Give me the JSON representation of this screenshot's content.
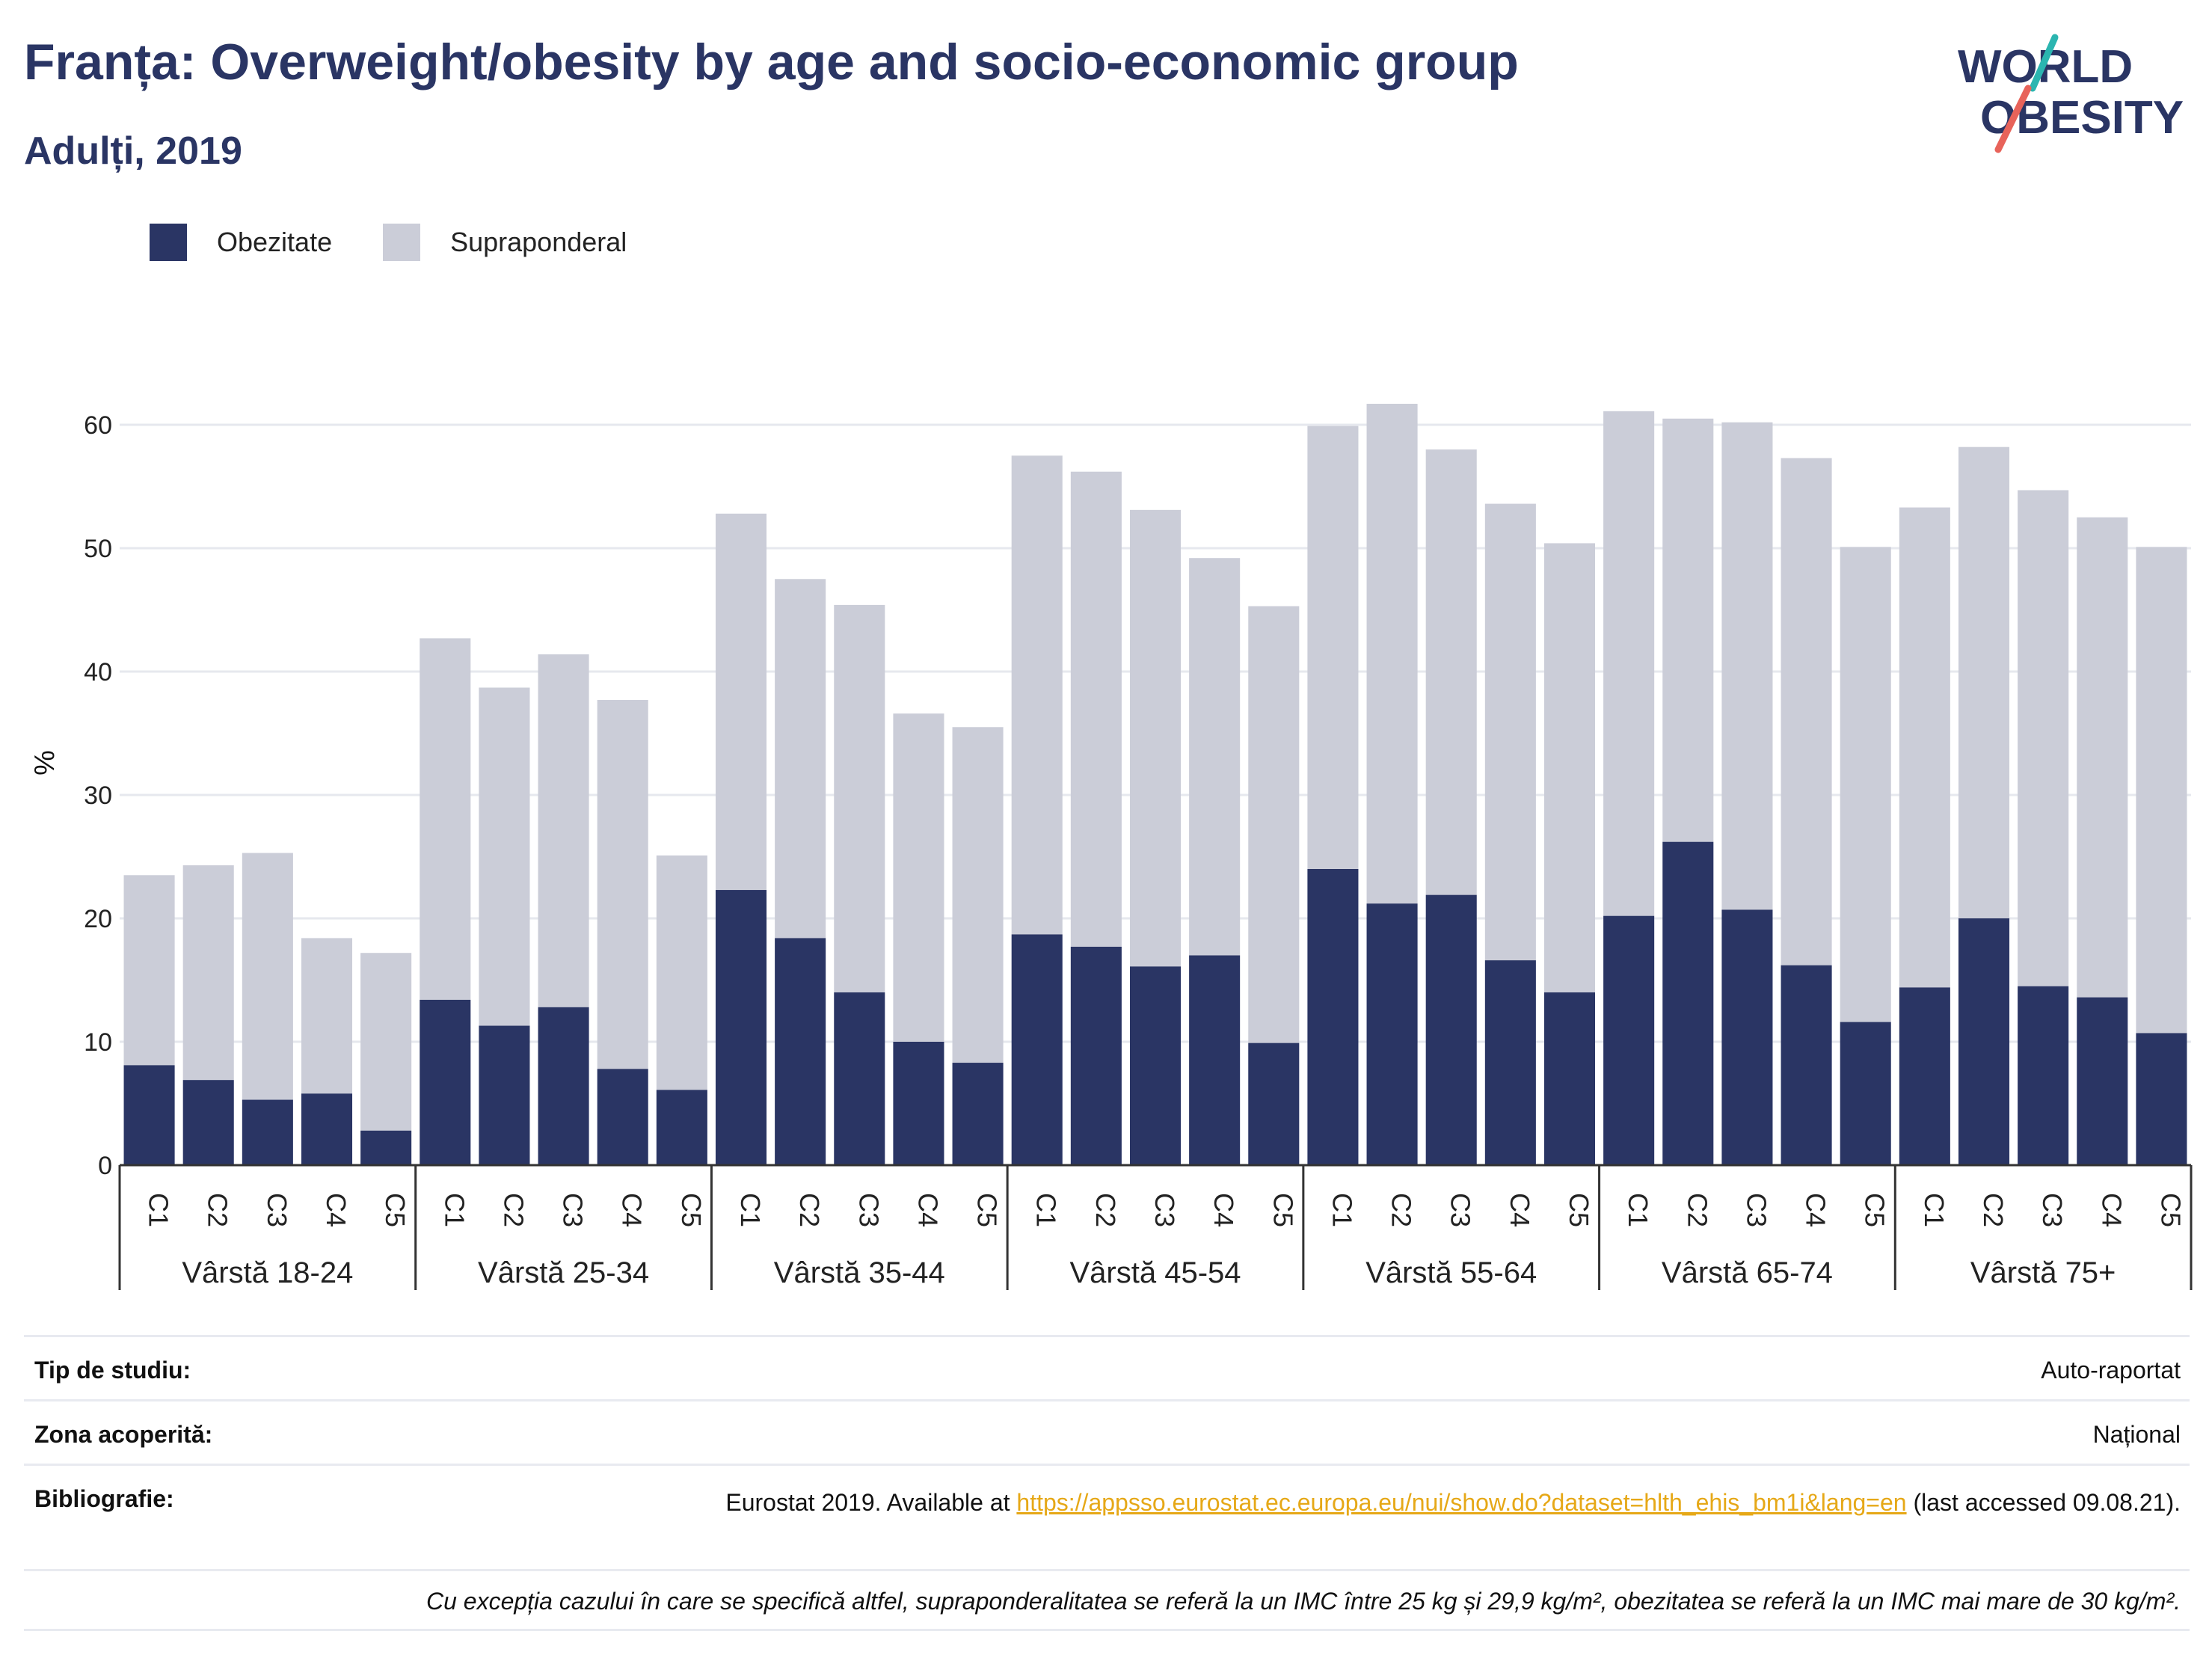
{
  "header": {
    "title": "Franța: Overweight/obesity by age and socio-economic group",
    "subtitle": "Adulți, 2019"
  },
  "logo": {
    "line1": "WORLD",
    "line2": "OBESITY",
    "accent_teal": "#2bb5b0",
    "accent_red": "#e8635a",
    "color": "#2a3564"
  },
  "legend": [
    {
      "label": "Obezitate",
      "color": "#2a3564"
    },
    {
      "label": "Supraponderal",
      "color": "#cbcdd8"
    }
  ],
  "chart_data": {
    "type": "bar",
    "stacked": true,
    "ylabel": "%",
    "ylim": [
      0,
      65
    ],
    "yticks": [
      0,
      10,
      20,
      30,
      40,
      50,
      60
    ],
    "grid": true,
    "legend_position": "top-left",
    "groups": [
      {
        "label": "Vârstă 18-24",
        "categories": [
          "C1",
          "C2",
          "C3",
          "C4",
          "C5"
        ],
        "obezitate": [
          8.1,
          6.9,
          5.3,
          5.8,
          2.8
        ],
        "supraponderal": [
          15.4,
          17.4,
          20.0,
          12.6,
          14.4
        ]
      },
      {
        "label": "Vârstă 25-34",
        "categories": [
          "C1",
          "C2",
          "C3",
          "C4",
          "C5"
        ],
        "obezitate": [
          13.4,
          11.3,
          12.8,
          7.8,
          6.1
        ],
        "supraponderal": [
          29.3,
          27.4,
          28.6,
          29.9,
          19.0
        ]
      },
      {
        "label": "Vârstă 35-44",
        "categories": [
          "C1",
          "C2",
          "C3",
          "C4",
          "C5"
        ],
        "obezitate": [
          22.3,
          18.4,
          14.0,
          10.0,
          8.3
        ],
        "supraponderal": [
          30.5,
          29.1,
          31.4,
          26.6,
          27.2
        ]
      },
      {
        "label": "Vârstă 45-54",
        "categories": [
          "C1",
          "C2",
          "C3",
          "C4",
          "C5"
        ],
        "obezitate": [
          18.7,
          17.7,
          16.1,
          17.0,
          9.9
        ],
        "supraponderal": [
          38.8,
          38.5,
          37.0,
          32.2,
          35.4
        ]
      },
      {
        "label": "Vârstă 55-64",
        "categories": [
          "C1",
          "C2",
          "C3",
          "C4",
          "C5"
        ],
        "obezitate": [
          24.0,
          21.2,
          21.9,
          16.6,
          14.0
        ],
        "supraponderal": [
          35.9,
          40.5,
          36.1,
          37.0,
          36.4
        ]
      },
      {
        "label": "Vârstă 65-74",
        "categories": [
          "C1",
          "C2",
          "C3",
          "C4",
          "C5"
        ],
        "obezitate": [
          20.2,
          26.2,
          20.7,
          16.2,
          11.6
        ],
        "supraponderal": [
          40.9,
          34.3,
          39.5,
          41.1,
          38.5
        ]
      },
      {
        "label": "Vârstă 75+",
        "categories": [
          "C1",
          "C2",
          "C3",
          "C4",
          "C5"
        ],
        "obezitate": [
          14.4,
          20.0,
          14.5,
          13.6,
          10.7
        ],
        "supraponderal": [
          38.9,
          38.2,
          40.2,
          38.9,
          39.4
        ]
      }
    ]
  },
  "info": {
    "study_type_label": "Tip de studiu:",
    "study_type_value": "Auto-raportat",
    "coverage_label": "Zona acoperită:",
    "coverage_value": "Național",
    "bibliography_label": "Bibliografie:",
    "bibliography_prefix": "Eurostat 2019. Available at",
    "bibliography_link": "https://appsso.eurostat.ec.europa.eu/nui/show.do?dataset=hlth_ehis_bm1i&lang=en",
    "bibliography_suffix": "(last accessed 09.08.21).",
    "footnote": "Cu excepția cazului în care se specifică altfel, supraponderalitatea se referă la un IMC între 25 kg și 29,9 kg/m², obezitatea se referă la un IMC mai mare de 30 kg/m²."
  }
}
